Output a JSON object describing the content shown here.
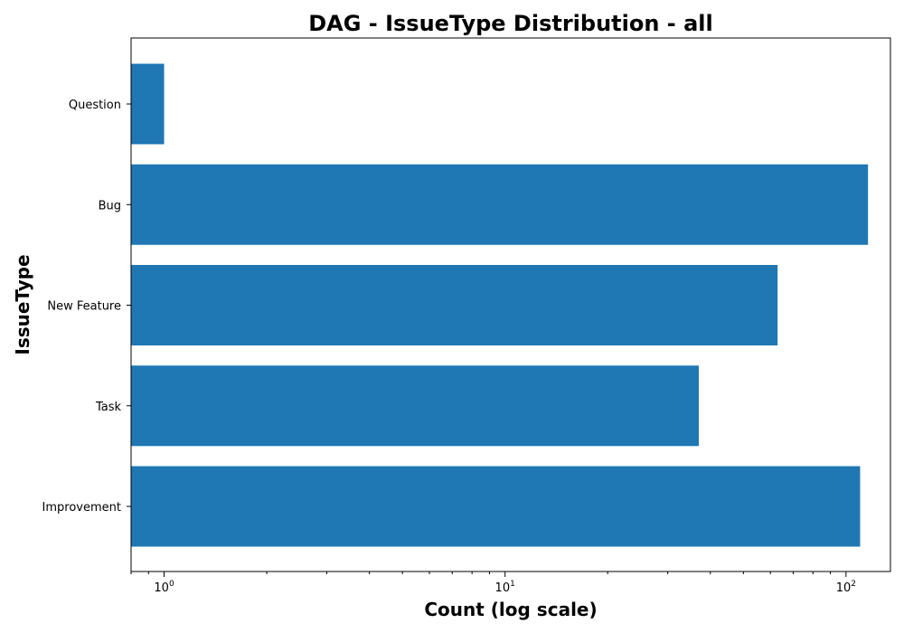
{
  "chart_data": {
    "type": "bar",
    "orientation": "horizontal",
    "title": "DAG - IssueType Distribution - all",
    "xlabel": "Count (log scale)",
    "ylabel": "IssueType",
    "x_scale": "log",
    "xlim": [
      0.8,
      135
    ],
    "x_ticks": [
      {
        "value": 1,
        "base": "10",
        "exp": "0"
      },
      {
        "value": 10,
        "base": "10",
        "exp": "1"
      },
      {
        "value": 100,
        "base": "10",
        "exp": "2"
      }
    ],
    "categories": [
      "Improvement",
      "Task",
      "New Feature",
      "Bug",
      "Question"
    ],
    "values": [
      110,
      37,
      63,
      116,
      1
    ],
    "bar_color": "#1f77b4",
    "grid": false,
    "legend": "none"
  }
}
